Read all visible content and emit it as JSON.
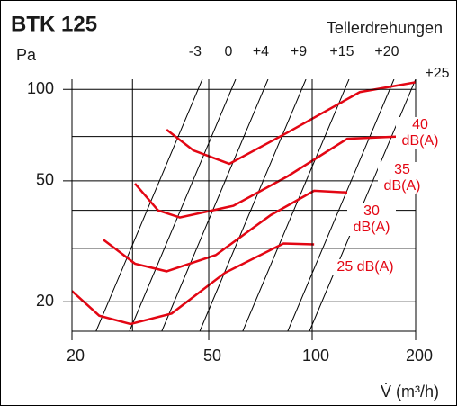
{
  "chart_data": {
    "type": "line",
    "title": "BTK 125",
    "y_label": "Pa",
    "speed_title": "Tellerdrehungen",
    "x_label": "V̇ (m³/h)",
    "x_log": true,
    "y_log": true,
    "xlim": [
      20,
      200
    ],
    "ylim": [
      16,
      108
    ],
    "xticks": [
      20,
      50,
      100,
      200
    ],
    "x_minor_grid": [
      30
    ],
    "yticks": [
      20,
      50,
      100
    ],
    "y_minor_grid": [
      30,
      40,
      70
    ],
    "grid": true,
    "series": [
      {
        "name": "40 dB(A)",
        "color": "#e30613",
        "x": [
          37.7,
          45.1,
          57.4,
          84.9,
          137.6,
          200
        ],
        "values": [
          73.7,
          63.0,
          56.9,
          72.2,
          98.0,
          105.6
        ]
      },
      {
        "name": "35 dB(A)",
        "color": "#e30613",
        "x": [
          30.5,
          35.6,
          41.2,
          59.0,
          84.9,
          126.5,
          191
        ],
        "values": [
          49.0,
          40.0,
          37.9,
          41.4,
          51.8,
          68.8,
          70.2
        ]
      },
      {
        "name": "30 dB(A)",
        "color": "#e30613",
        "x": [
          24.7,
          30.5,
          37.7,
          52.4,
          75.8,
          101.3,
          126.5
        ],
        "values": [
          32.0,
          26.7,
          25.2,
          28.5,
          38.6,
          46.4,
          45.8
        ]
      },
      {
        "name": "25 dB(A)",
        "color": "#e30613",
        "x": [
          20,
          24.0,
          29.6,
          39.0,
          55.7,
          82.5,
          101.3
        ],
        "values": [
          21.7,
          18.0,
          16.9,
          18.3,
          24.9,
          31.1,
          30.9
        ]
      }
    ],
    "speed_lines": [
      {
        "name": "-3",
        "color": "#000000",
        "x": [
          23.5,
          47.9
        ],
        "values": [
          16,
          108
        ]
      },
      {
        "name": "0",
        "color": "#000000",
        "x": [
          29.4,
          59.9
        ],
        "values": [
          16,
          108
        ]
      },
      {
        "name": "+4",
        "color": "#000000",
        "x": [
          36.5,
          74.4
        ],
        "values": [
          16,
          108
        ]
      },
      {
        "name": "+9",
        "color": "#000000",
        "x": [
          47.1,
          95.9
        ],
        "values": [
          16,
          108
        ]
      },
      {
        "name": "+15",
        "color": "#000000",
        "x": [
          62.8,
          128
        ],
        "values": [
          16,
          108
        ]
      },
      {
        "name": "+20",
        "color": "#000000",
        "x": [
          84.9,
          173
        ],
        "values": [
          16,
          108
        ]
      },
      {
        "name": "+25",
        "color": "#000000",
        "x": [
          98.2,
          200
        ],
        "values": [
          16,
          108
        ]
      }
    ]
  }
}
